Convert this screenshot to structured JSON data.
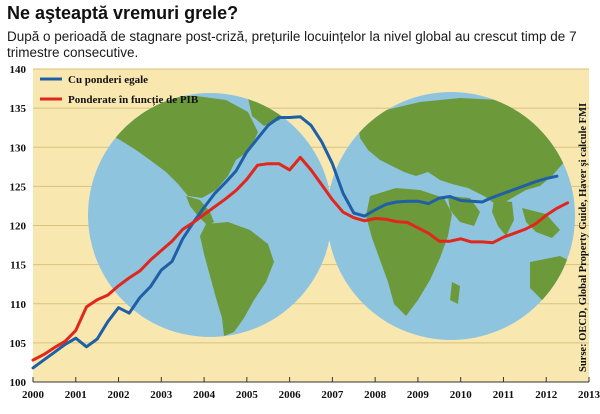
{
  "header": {
    "title": "Ne aşteaptă vremuri grele?",
    "subtitle": "După o perioadă de stagnare post-criză, prețurile locuințelor la nivel global au crescut timp de 7 trimestre consecutive."
  },
  "source_note": "Surse: OECD, Global Property Guide, Haver şi calcule FMI",
  "colors": {
    "background": "#f8e8b0",
    "globe": "#8fc4df",
    "land": "#6c9a3a",
    "grid": "#d8c27a",
    "series_equal": "#1f5fa6",
    "series_gdp": "#e1261c"
  },
  "chart_data": {
    "type": "line",
    "title": "Ne aşteaptă vremuri grele?",
    "xlim": [
      2000,
      2013
    ],
    "ylim": [
      100,
      140
    ],
    "xticks": [
      "2000",
      "2001",
      "2002",
      "2003",
      "2004",
      "2005",
      "2006",
      "2007",
      "2008",
      "2009",
      "2010",
      "2011",
      "2012",
      "2013"
    ],
    "yticks": [
      "100",
      "105",
      "110",
      "115",
      "120",
      "125",
      "130",
      "135",
      "140"
    ],
    "grid": "horizontal",
    "legend_position": "top-left",
    "series": [
      {
        "name": "Cu ponderi egale",
        "color": "#1f5fa6",
        "points": [
          [
            2000.0,
            101.8
          ],
          [
            2000.25,
            102.8
          ],
          [
            2000.5,
            103.8
          ],
          [
            2000.75,
            104.8
          ],
          [
            2001.0,
            105.6
          ],
          [
            2001.25,
            104.5
          ],
          [
            2001.5,
            105.5
          ],
          [
            2001.75,
            107.7
          ],
          [
            2002.0,
            109.5
          ],
          [
            2002.25,
            108.8
          ],
          [
            2002.5,
            110.8
          ],
          [
            2002.75,
            112.2
          ],
          [
            2003.0,
            114.3
          ],
          [
            2003.25,
            115.4
          ],
          [
            2003.5,
            118.3
          ],
          [
            2003.75,
            120.4
          ],
          [
            2004.0,
            122.3
          ],
          [
            2004.25,
            124.1
          ],
          [
            2004.5,
            125.5
          ],
          [
            2004.75,
            127.0
          ],
          [
            2005.0,
            129.4
          ],
          [
            2005.25,
            131.1
          ],
          [
            2005.5,
            132.8
          ],
          [
            2005.75,
            133.8
          ],
          [
            2006.0,
            133.8
          ],
          [
            2006.25,
            133.9
          ],
          [
            2006.5,
            132.8
          ],
          [
            2006.75,
            130.7
          ],
          [
            2007.0,
            127.9
          ],
          [
            2007.25,
            124.1
          ],
          [
            2007.5,
            121.6
          ],
          [
            2007.75,
            121.2
          ],
          [
            2008.0,
            122.0
          ],
          [
            2008.25,
            122.7
          ],
          [
            2008.5,
            123.0
          ],
          [
            2008.75,
            123.1
          ],
          [
            2009.0,
            123.1
          ],
          [
            2009.25,
            122.8
          ],
          [
            2009.5,
            123.5
          ],
          [
            2009.75,
            123.7
          ],
          [
            2010.0,
            123.2
          ],
          [
            2010.25,
            123.1
          ],
          [
            2010.5,
            123.0
          ],
          [
            2010.75,
            123.6
          ],
          [
            2011.0,
            124.1
          ],
          [
            2011.25,
            124.6
          ],
          [
            2011.5,
            125.1
          ],
          [
            2011.75,
            125.6
          ],
          [
            2012.0,
            126.0
          ],
          [
            2012.25,
            126.3
          ]
        ]
      },
      {
        "name": "Ponderate în funcție de PIB",
        "color": "#e1261c",
        "points": [
          [
            2000.0,
            102.8
          ],
          [
            2000.25,
            103.5
          ],
          [
            2000.5,
            104.4
          ],
          [
            2000.75,
            105.2
          ],
          [
            2001.0,
            106.6
          ],
          [
            2001.25,
            109.6
          ],
          [
            2001.5,
            110.5
          ],
          [
            2001.75,
            111.1
          ],
          [
            2002.0,
            112.3
          ],
          [
            2002.25,
            113.3
          ],
          [
            2002.5,
            114.2
          ],
          [
            2002.75,
            115.6
          ],
          [
            2003.0,
            116.8
          ],
          [
            2003.25,
            118.0
          ],
          [
            2003.5,
            119.5
          ],
          [
            2003.75,
            120.4
          ],
          [
            2004.0,
            121.4
          ],
          [
            2004.25,
            122.4
          ],
          [
            2004.5,
            123.4
          ],
          [
            2004.75,
            124.5
          ],
          [
            2005.0,
            125.9
          ],
          [
            2005.25,
            127.7
          ],
          [
            2005.5,
            127.9
          ],
          [
            2005.75,
            127.9
          ],
          [
            2006.0,
            127.1
          ],
          [
            2006.25,
            128.7
          ],
          [
            2006.5,
            127.1
          ],
          [
            2006.75,
            125.2
          ],
          [
            2007.0,
            123.3
          ],
          [
            2007.25,
            121.7
          ],
          [
            2007.5,
            121.0
          ],
          [
            2007.75,
            120.6
          ],
          [
            2008.0,
            120.9
          ],
          [
            2008.25,
            120.8
          ],
          [
            2008.5,
            120.5
          ],
          [
            2008.75,
            120.4
          ],
          [
            2009.0,
            119.7
          ],
          [
            2009.25,
            119.0
          ],
          [
            2009.5,
            118.0
          ],
          [
            2009.75,
            118.0
          ],
          [
            2010.0,
            118.3
          ],
          [
            2010.25,
            117.9
          ],
          [
            2010.5,
            117.9
          ],
          [
            2010.75,
            117.8
          ],
          [
            2011.0,
            118.5
          ],
          [
            2011.25,
            119.0
          ],
          [
            2011.5,
            119.5
          ],
          [
            2011.75,
            120.2
          ],
          [
            2012.0,
            121.3
          ],
          [
            2012.25,
            122.2
          ],
          [
            2012.5,
            122.9
          ]
        ]
      }
    ]
  }
}
